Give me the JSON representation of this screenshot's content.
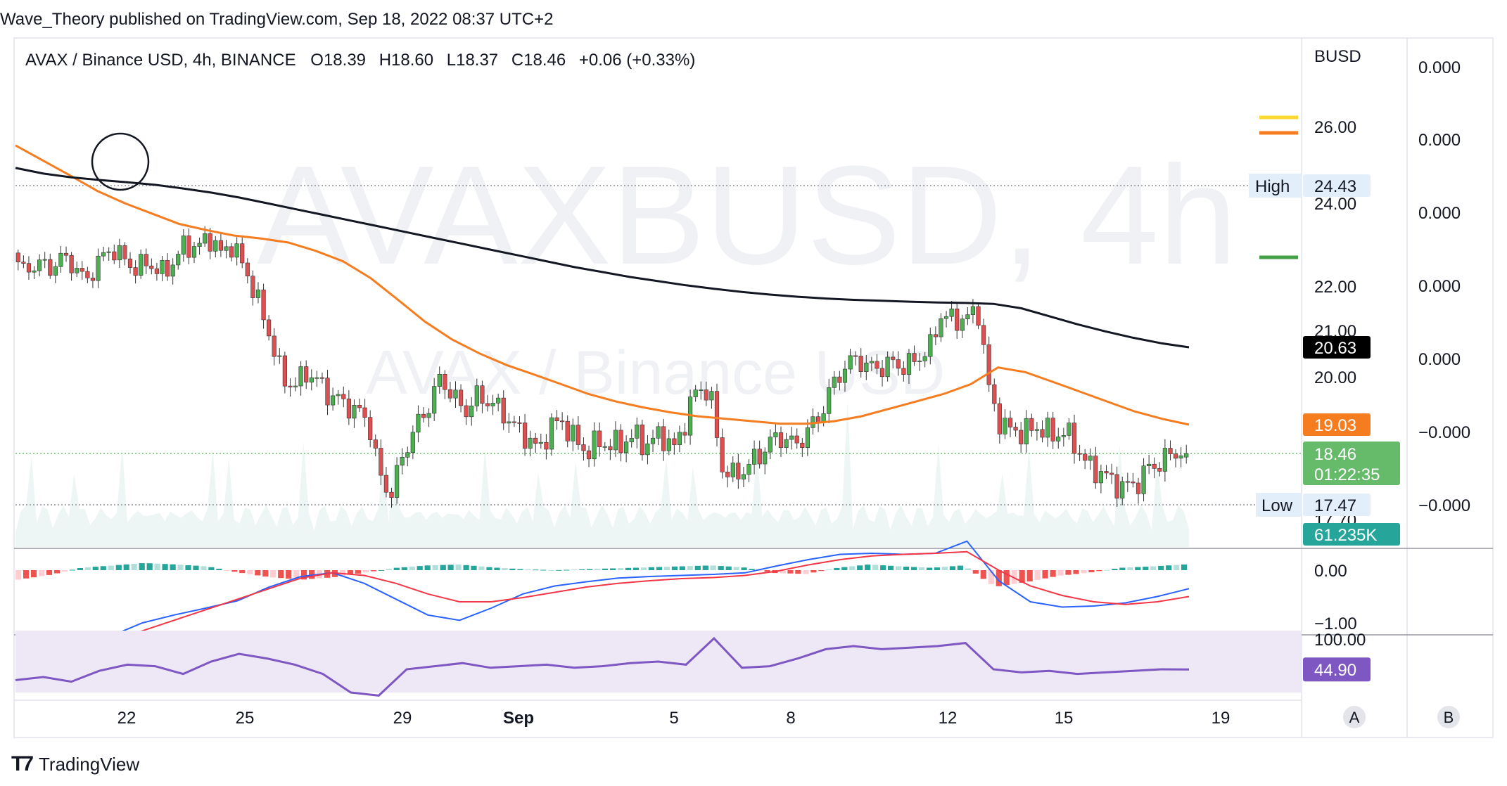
{
  "header": {
    "published": "Wave_Theory published on TradingView.com, Sep 18, 2022 08:37 UTC+2"
  },
  "footer": {
    "brand": "TradingView",
    "logo": "tradingview-logo-icon"
  },
  "watermark": {
    "symbol": "AVAXBUSD, 4h",
    "subtitle": "AVAX / Binance USD"
  },
  "legend": {
    "title": "AVAX / Binance USD, 4h, BINANCE",
    "open": "O18.39",
    "high": "H18.60",
    "low": "L18.37",
    "close": "C18.46",
    "change": "+0.06 (+0.33%)"
  },
  "colors": {
    "up": "#26a69a",
    "down": "#ef5350",
    "up_candle": "#4caf50",
    "down_candle": "#e04f4f",
    "ema_orange": "#f57c1f",
    "sma_black": "#131722",
    "macd": "#2962ff",
    "signal": "#f23645",
    "rsi": "#7e57c2",
    "rsi_band": "#ede7f6",
    "last_price_bg": "#66bb6a"
  },
  "chart_data": [
    {
      "type": "candlestick",
      "symbol": "AVAX / Binance USD",
      "interval": "4h",
      "exchange": "BINANCE",
      "currency": "BUSD",
      "x_ticks": [
        "22",
        "25",
        "29",
        "Sep",
        "5",
        "8",
        "12",
        "15",
        "19"
      ],
      "y_ticks": [
        "26.00",
        "24.00",
        "22.00",
        "21.00",
        "20.00"
      ],
      "ohlc_last": {
        "open": 18.39,
        "high": 18.6,
        "low": 18.37,
        "close": 18.46,
        "change": 0.06,
        "change_pct": 0.33
      },
      "price_path": [
        22.8,
        22.3,
        22.6,
        22.4,
        22.7,
        22.5,
        22.1,
        22.6,
        22.9,
        22.7,
        22.4,
        22.6,
        22.3,
        22.5,
        23.0,
        22.9,
        23.2,
        22.8,
        23.0,
        22.4,
        21.7,
        20.9,
        20.0,
        19.8,
        20.1,
        19.9,
        19.6,
        19.5,
        19.3,
        19.2,
        18.0,
        17.7,
        18.5,
        19.0,
        19.4,
        20.0,
        19.6,
        19.3,
        19.6,
        19.5,
        19.3,
        19.0,
        18.8,
        18.5,
        19.0,
        19.1,
        18.7,
        18.5,
        18.7,
        18.6,
        18.7,
        18.8,
        18.6,
        18.9,
        18.5,
        19.1,
        19.8,
        19.7,
        18.2,
        18.0,
        18.2,
        18.4,
        18.7,
        18.8,
        18.6,
        18.9,
        19.2,
        19.8,
        20.2,
        20.4,
        20.2,
        20.2,
        20.3,
        20.2,
        20.4,
        20.6,
        21.4,
        21.2,
        21.3,
        21.4,
        19.5,
        19.0,
        18.9,
        18.9,
        19.0,
        18.8,
        18.9,
        18.6,
        18.2,
        18.1,
        17.9,
        17.8,
        17.9,
        18.2,
        18.3,
        18.5,
        18.46
      ],
      "ema_orange_path": [
        25.5,
        25.1,
        24.7,
        24.3,
        24.0,
        23.75,
        23.5,
        23.35,
        23.22,
        23.15,
        23.05,
        22.85,
        22.6,
        22.2,
        21.7,
        21.2,
        20.8,
        20.5,
        20.25,
        20.05,
        19.85,
        19.65,
        19.5,
        19.38,
        19.28,
        19.2,
        19.15,
        19.1,
        19.05,
        19.05,
        19.1,
        19.2,
        19.35,
        19.5,
        19.65,
        19.85,
        20.2,
        20.1,
        19.9,
        19.7,
        19.5,
        19.3,
        19.15,
        19.03
      ],
      "sma_black_path": [
        24.9,
        24.75,
        24.65,
        24.58,
        24.52,
        24.45,
        24.36,
        24.26,
        24.14,
        24.0,
        23.86,
        23.72,
        23.58,
        23.44,
        23.3,
        23.16,
        23.02,
        22.88,
        22.74,
        22.6,
        22.46,
        22.34,
        22.22,
        22.12,
        22.02,
        21.94,
        21.87,
        21.81,
        21.76,
        21.72,
        21.69,
        21.67,
        21.65,
        21.63,
        21.62,
        21.6,
        21.5,
        21.32,
        21.14,
        20.98,
        20.84,
        20.72,
        20.63
      ],
      "axis_labels": {
        "high": {
          "label": "High",
          "value": "24.43"
        },
        "low": {
          "label": "Low",
          "value": "17.47"
        },
        "sma": "20.63",
        "ema": "19.03",
        "last": "18.46",
        "countdown": "01:22:35",
        "volume": "61.235K",
        "covered_tick": "17.70"
      },
      "scale_b_ticks": [
        "0.000",
        "0.000",
        "0.000",
        "0.000",
        "0.000",
        "−0.000",
        "−0.000"
      ]
    },
    {
      "type": "macd",
      "y_ticks": [
        "0.00",
        "−1.00"
      ],
      "macd_path": [
        -1.38,
        -1.5,
        -1.45,
        -1.25,
        -1.0,
        -0.85,
        -0.72,
        -0.58,
        -0.32,
        -0.12,
        -0.05,
        -0.25,
        -0.55,
        -0.85,
        -0.95,
        -0.72,
        -0.45,
        -0.3,
        -0.22,
        -0.15,
        -0.12,
        -0.1,
        -0.08,
        -0.05,
        0.08,
        0.2,
        0.3,
        0.32,
        0.3,
        0.32,
        0.55,
        -0.2,
        -0.6,
        -0.7,
        -0.68,
        -0.62,
        -0.5,
        -0.35
      ],
      "signal_path": [
        -1.45,
        -1.5,
        -1.45,
        -1.3,
        -1.15,
        -0.95,
        -0.75,
        -0.55,
        -0.35,
        -0.15,
        -0.05,
        -0.1,
        -0.25,
        -0.45,
        -0.6,
        -0.6,
        -0.52,
        -0.42,
        -0.32,
        -0.25,
        -0.2,
        -0.16,
        -0.14,
        -0.1,
        -0.02,
        0.1,
        0.2,
        0.27,
        0.3,
        0.32,
        0.35,
        0.0,
        -0.3,
        -0.48,
        -0.6,
        -0.65,
        -0.6,
        -0.5
      ],
      "histogram": [
        -0.2,
        -0.1,
        0.05,
        0.1,
        0.15,
        0.12,
        0.08,
        -0.05,
        -0.15,
        -0.2,
        -0.15,
        -0.05,
        0.05,
        0.1,
        0.12,
        0.06,
        0.02,
        0.0,
        0.02,
        0.04,
        0.06,
        0.08,
        0.1,
        0.06,
        -0.06,
        -0.08,
        0.05,
        0.12,
        0.08,
        0.05,
        0.1,
        -0.35,
        -0.25,
        -0.12,
        -0.05,
        0.05,
        0.08,
        0.12
      ]
    },
    {
      "type": "rsi",
      "y_ticks": [
        "100.00"
      ],
      "value": "44.90",
      "rsi_path": [
        38,
        40,
        37,
        44,
        48,
        47,
        42,
        50,
        55,
        52,
        48,
        42,
        30,
        28,
        45,
        47,
        49,
        46,
        47,
        48,
        46,
        47,
        49,
        50,
        48,
        65,
        46,
        47,
        52,
        58,
        60,
        58,
        59,
        60,
        62,
        45,
        43,
        44,
        42,
        43,
        44,
        45,
        44.9
      ]
    }
  ],
  "scale_buttons": {
    "a": "A",
    "b": "B"
  }
}
